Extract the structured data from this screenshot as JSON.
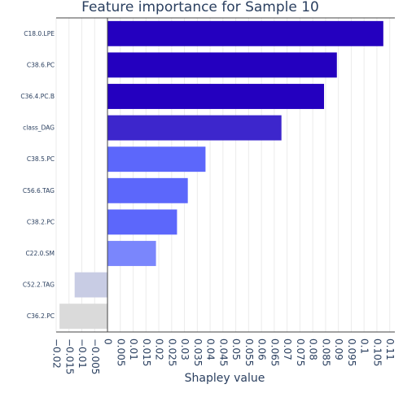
{
  "chart_data": {
    "type": "bar",
    "orientation": "horizontal",
    "title": "Feature importance for Sample 10",
    "xlabel": "Shapley value",
    "ylabel": "",
    "xlim": [
      -0.02,
      0.112
    ],
    "grid": true,
    "categories": [
      "C18.0.LPE",
      "C38.6.PC",
      "C36.4.PC.B",
      "class_DAG",
      "C38.5.PC",
      "C56.6.TAG",
      "C38.2.PC",
      "C22.0.SM",
      "C52.2.TAG",
      "C36.2.PC"
    ],
    "values": [
      0.1075,
      0.0894,
      0.0844,
      0.0678,
      0.0382,
      0.0313,
      0.0271,
      0.0189,
      -0.0128,
      -0.0187
    ],
    "colors": [
      "#2400bf",
      "#2400bf",
      "#2400bf",
      "#3d26cc",
      "#5c67fb",
      "#5c67fb",
      "#5c67fb",
      "#7a86fc",
      "#c8cce4",
      "#dadada"
    ],
    "xticks": [
      "−0.02",
      "−0.015",
      "−0.01",
      "−0.005",
      "0",
      "0.005",
      "0.01",
      "0.015",
      "0.02",
      "0.025",
      "0.03",
      "0.035",
      "0.04",
      "0.045",
      "0.05",
      "0.055",
      "0.06",
      "0.065",
      "0.07",
      "0.075",
      "0.08",
      "0.085",
      "0.09",
      "0.095",
      "0.1",
      "0.105",
      "0.11"
    ],
    "xtick_values": [
      -0.02,
      -0.015,
      -0.01,
      -0.005,
      0,
      0.005,
      0.01,
      0.015,
      0.02,
      0.025,
      0.03,
      0.035,
      0.04,
      0.045,
      0.05,
      0.055,
      0.06,
      0.065,
      0.07,
      0.075,
      0.08,
      0.085,
      0.09,
      0.095,
      0.1,
      0.105,
      0.11
    ]
  }
}
